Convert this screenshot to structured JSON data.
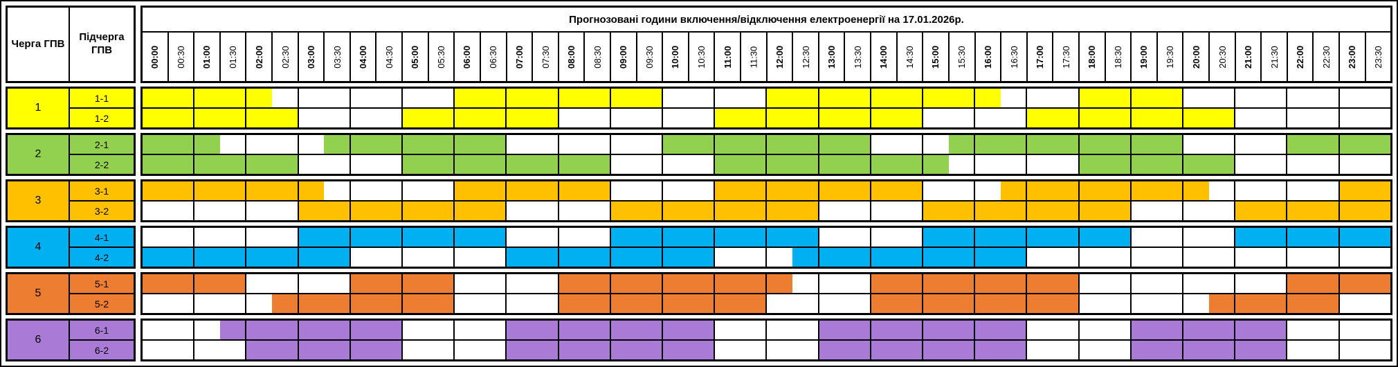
{
  "title": "Прогнозовані години включення/відключення електроенергії на 17.01.2026р.",
  "column_headers": {
    "queue": "Черга ГПВ",
    "subqueue": "Підчерга ГПВ"
  },
  "time_slots": [
    "00:00",
    "00:30",
    "01:00",
    "01:30",
    "02:00",
    "02:30",
    "03:00",
    "03:30",
    "04:00",
    "04:30",
    "05:00",
    "05:30",
    "06:00",
    "06:30",
    "07:00",
    "07:30",
    "08:00",
    "08:30",
    "09:00",
    "09:30",
    "10:00",
    "10:30",
    "11:00",
    "11:30",
    "12:00",
    "12:30",
    "13:00",
    "13:30",
    "14:00",
    "14:30",
    "15:00",
    "15:30",
    "16:00",
    "16:30",
    "17:00",
    "17:30",
    "18:00",
    "18:30",
    "19:00",
    "19:30",
    "20:00",
    "20:30",
    "21:00",
    "21:30",
    "22:00",
    "22:30",
    "23:00",
    "23:30"
  ],
  "off_color": "#FFFFFF",
  "border_color": "#000000",
  "queues": [
    {
      "label": "1",
      "color": "#FFFF00",
      "rows": [
        {
          "label": "1-1",
          "slots": "111110000000111111110000111111111000111100000000"
        },
        {
          "label": "1-2",
          "slots": "111111000011111100000011111111000011111111000000"
        }
      ]
    },
    {
      "label": "2",
      "color": "#92D050",
      "rows": [
        {
          "label": "2-1",
          "slots": "111000011111110000001111111100011111111100001111"
        },
        {
          "label": "2-2",
          "slots": "111111000011111111000011111111100000111111000000"
        }
      ]
    },
    {
      "label": "3",
      "color": "#FFC000",
      "rows": [
        {
          "label": "3-1",
          "slots": "111111100000111111000011111111000111111110000011"
        },
        {
          "label": "3-2",
          "slots": "000000111111110000111111110000111111110000111111"
        }
      ]
    },
    {
      "label": "4",
      "color": "#00B0F0",
      "rows": [
        {
          "label": "4-1",
          "slots": "000000111111110000111111110000111111110000111111"
        },
        {
          "label": "4-2",
          "slots": "111111110000001111111100011111111100000000000000"
        }
      ]
    },
    {
      "label": "5",
      "color": "#ED7D31",
      "rows": [
        {
          "label": "5-1",
          "slots": "111100001111000011111111100011111111000000001111"
        },
        {
          "label": "5-2",
          "slots": "000001111111000011111111000011111111000001111100"
        }
      ]
    },
    {
      "label": "6",
      "color": "#A97BD6",
      "rows": [
        {
          "label": "6-1",
          "slots": "000111111100001111111100001111111100001111110000"
        },
        {
          "label": "6-2",
          "slots": "000011111100001111111100001111111100001111110000"
        }
      ]
    }
  ]
}
